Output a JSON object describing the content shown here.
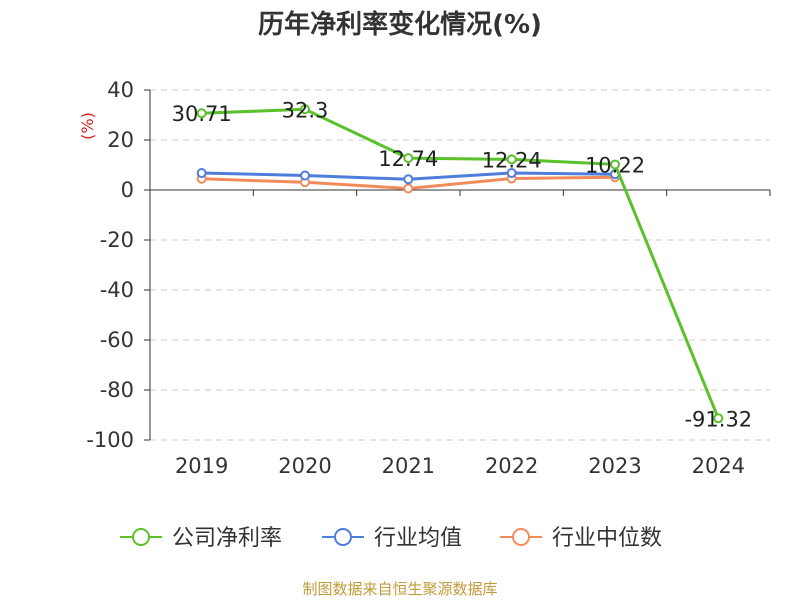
{
  "title": "历年净利率变化情况(%)",
  "footer": {
    "text": "制图数据来自恒生聚源数据库",
    "color": "#c29b3a"
  },
  "chart_data": {
    "type": "line",
    "categories": [
      "2019",
      "2020",
      "2021",
      "2022",
      "2023",
      "2024"
    ],
    "ylabel": "(%)",
    "ylim": [
      -100,
      40
    ],
    "yticks": [
      40,
      20,
      0,
      -20,
      -40,
      -60,
      -80,
      -100
    ],
    "grid": true,
    "legend_position": "bottom",
    "series": [
      {
        "name": "公司净利率",
        "color": "#5ac12a",
        "values": [
          30.71,
          32.3,
          12.74,
          12.24,
          10.22,
          -91.32
        ],
        "labels": [
          "30.71",
          "32.3",
          "12.74",
          "12.24",
          "10.22",
          "-91.32"
        ]
      },
      {
        "name": "行业均值",
        "color": "#4f7ddb",
        "values": [
          6.8,
          5.8,
          4.3,
          6.8,
          6.3,
          null
        ]
      },
      {
        "name": "行业中位数",
        "color": "#f28b5b",
        "values": [
          4.5,
          3.1,
          0.6,
          4.6,
          5.1,
          null
        ]
      }
    ]
  }
}
